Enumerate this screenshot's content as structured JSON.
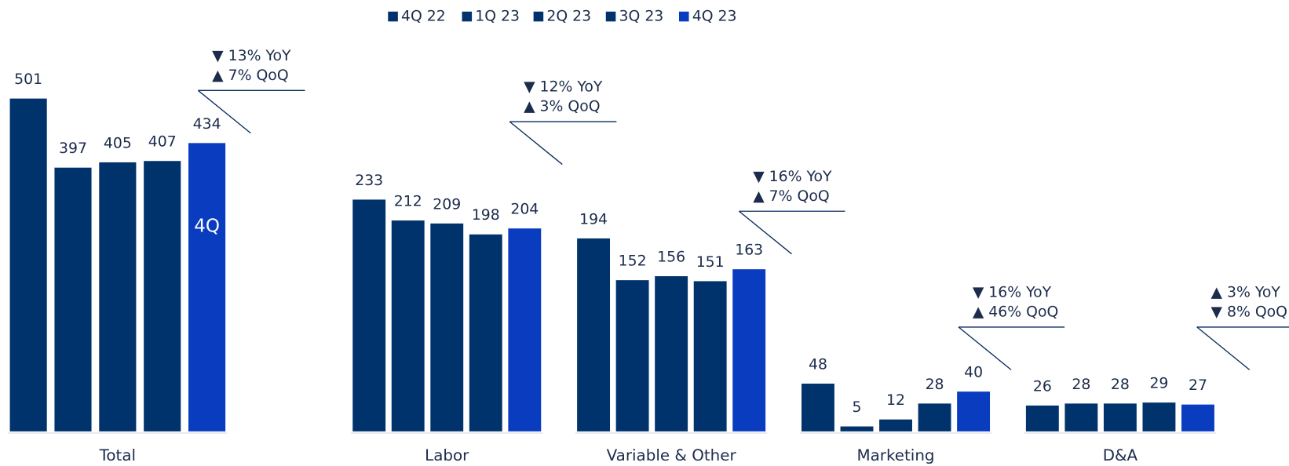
{
  "chart_data": [
    {
      "type": "bar",
      "categories": [
        "Total"
      ],
      "series": [
        {
          "name": "4Q 22",
          "color": "#00336b",
          "values": [
            501
          ]
        },
        {
          "name": "1Q 23",
          "color": "#00336b",
          "values": [
            397
          ]
        },
        {
          "name": "2Q 23",
          "color": "#00336b",
          "values": [
            405
          ]
        },
        {
          "name": "3Q 23",
          "color": "#00336b",
          "values": [
            407
          ]
        },
        {
          "name": "4Q 23",
          "color": "#0a3cbf",
          "values": [
            434
          ]
        }
      ],
      "ylim": [
        0,
        575
      ],
      "bar_label": "4Q",
      "annotations": [
        {
          "yoy": "▼ 13% YoY",
          "qoq": "▲ 7% QoQ"
        }
      ]
    },
    {
      "type": "bar",
      "categories": [
        "Labor",
        "Variable & Other",
        "Marketing",
        "D&A"
      ],
      "series": [
        {
          "color": "#00336b",
          "values": [
            233,
            194,
            48,
            26
          ]
        },
        {
          "color": "#00336b",
          "values": [
            212,
            152,
            5,
            28
          ]
        },
        {
          "color": "#00336b",
          "values": [
            209,
            156,
            12,
            28
          ]
        },
        {
          "color": "#00336b",
          "values": [
            198,
            151,
            28,
            29
          ]
        },
        {
          "color": "#0a3cbf",
          "values": [
            204,
            163,
            40,
            27
          ]
        }
      ],
      "ylim": [
        0,
        384
      ],
      "annotations": [
        {
          "yoy": "▼ 12% YoY",
          "qoq": "▲ 3% QoQ"
        },
        {
          "yoy": "▼ 16% YoY",
          "qoq": "▲ 7% QoQ"
        },
        {
          "yoy": "▼ 16% YoY",
          "qoq": "▲ 46% QoQ"
        },
        {
          "yoy": "▲ 3% YoY",
          "qoq": "▼ 8% QoQ"
        }
      ]
    }
  ]
}
